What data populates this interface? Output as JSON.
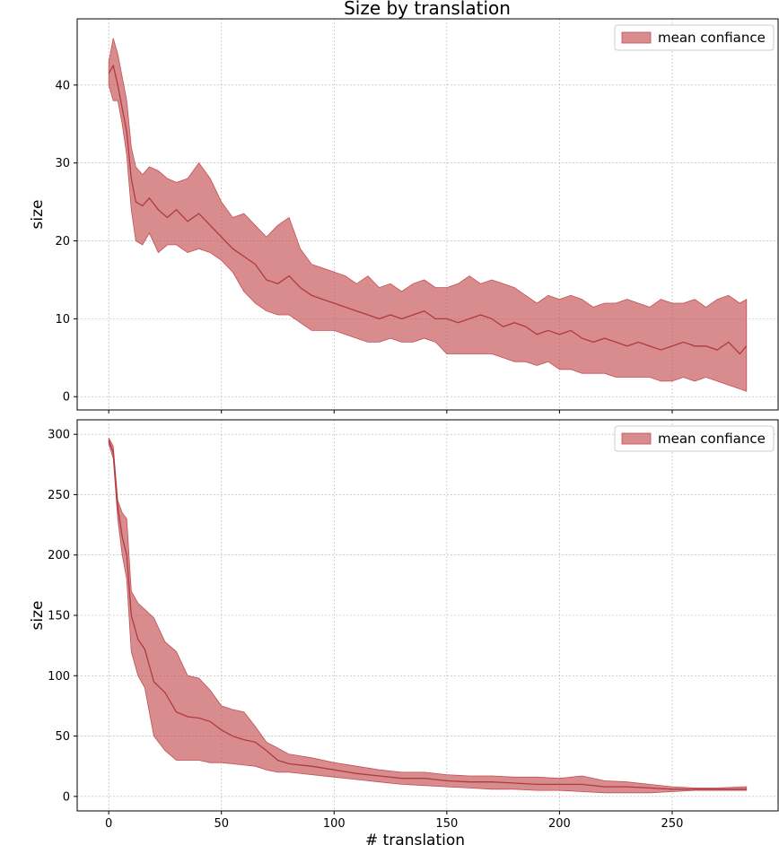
{
  "title": "Size by translation",
  "colors": {
    "band": "#c44e52",
    "line": "#b03a3e",
    "grid": "#b0b0b0"
  },
  "chart_data": [
    {
      "type": "area",
      "ylabel": "size",
      "xlabel": "",
      "xlim": [
        -14,
        297
      ],
      "ylim": [
        -1.7,
        48.5
      ],
      "xticks": [
        0,
        50,
        100,
        150,
        200,
        250
      ],
      "show_xtick_labels": false,
      "yticks": [
        0,
        10,
        20,
        30,
        40
      ],
      "grid": true,
      "legend": {
        "label": "mean confiance",
        "position": "top-right"
      },
      "series": [
        {
          "x": [
            0,
            2,
            4,
            6,
            8,
            10,
            12,
            15,
            18,
            22,
            26,
            30,
            35,
            40,
            45,
            50,
            55,
            60,
            65,
            70,
            75,
            80,
            85,
            90,
            95,
            100,
            105,
            110,
            115,
            120,
            125,
            130,
            135,
            140,
            145,
            150,
            155,
            160,
            165,
            170,
            175,
            180,
            185,
            190,
            195,
            200,
            205,
            210,
            215,
            220,
            225,
            230,
            235,
            240,
            245,
            250,
            255,
            260,
            265,
            270,
            275,
            280,
            283
          ],
          "mean": [
            41.5,
            42.5,
            40.0,
            37.0,
            34.0,
            28.0,
            25.0,
            24.5,
            25.5,
            24.0,
            23.0,
            24.0,
            22.5,
            23.5,
            22.0,
            20.5,
            19.0,
            18.0,
            17.0,
            15.0,
            14.5,
            15.5,
            14.0,
            13.0,
            12.5,
            12.0,
            11.5,
            11.0,
            10.5,
            10.0,
            10.5,
            10.0,
            10.5,
            11.0,
            10.0,
            10.0,
            9.5,
            10.0,
            10.5,
            10.0,
            9.0,
            9.5,
            9.0,
            8.0,
            8.5,
            8.0,
            8.5,
            7.5,
            7.0,
            7.5,
            7.0,
            6.5,
            7.0,
            6.5,
            6.0,
            6.5,
            7.0,
            6.5,
            6.5,
            6.0,
            7.0,
            5.5,
            6.5
          ],
          "lower": [
            40.0,
            38.0,
            38.0,
            35.0,
            31.0,
            24.0,
            20.0,
            19.5,
            21.0,
            18.5,
            19.5,
            19.5,
            18.5,
            19.0,
            18.5,
            17.5,
            16.0,
            13.5,
            12.0,
            11.0,
            10.5,
            10.5,
            9.5,
            8.5,
            8.5,
            8.5,
            8.0,
            7.5,
            7.0,
            7.0,
            7.5,
            7.0,
            7.0,
            7.5,
            7.0,
            5.5,
            5.5,
            5.5,
            5.5,
            5.5,
            5.0,
            4.5,
            4.5,
            4.0,
            4.5,
            3.5,
            3.5,
            3.0,
            3.0,
            3.0,
            2.5,
            2.5,
            2.5,
            2.5,
            2.0,
            2.0,
            2.5,
            2.0,
            2.5,
            2.0,
            1.5,
            1.0,
            0.7
          ],
          "upper": [
            43.0,
            46.0,
            44.0,
            41.0,
            38.0,
            32.0,
            29.5,
            28.5,
            29.5,
            29.0,
            28.0,
            27.5,
            28.0,
            30.0,
            28.0,
            25.0,
            23.0,
            23.5,
            22.0,
            20.5,
            22.0,
            23.0,
            19.0,
            17.0,
            16.5,
            16.0,
            15.5,
            14.5,
            15.5,
            14.0,
            14.5,
            13.5,
            14.5,
            15.0,
            14.0,
            14.0,
            14.5,
            15.5,
            14.5,
            15.0,
            14.5,
            14.0,
            13.0,
            12.0,
            13.0,
            12.5,
            13.0,
            12.5,
            11.5,
            12.0,
            12.0,
            12.5,
            12.0,
            11.5,
            12.5,
            12.0,
            12.0,
            12.5,
            11.5,
            12.5,
            13.0,
            12.0,
            12.5
          ]
        }
      ]
    },
    {
      "type": "area",
      "ylabel": "size",
      "xlabel": "# translation",
      "xlim": [
        -14,
        297
      ],
      "ylim": [
        -12,
        312
      ],
      "xticks": [
        0,
        50,
        100,
        150,
        200,
        250
      ],
      "show_xtick_labels": true,
      "yticks": [
        0,
        50,
        100,
        150,
        200,
        250,
        300
      ],
      "grid": true,
      "legend": {
        "label": "mean confiance",
        "position": "top-right"
      },
      "series": [
        {
          "x": [
            0,
            2,
            4,
            6,
            8,
            10,
            13,
            16,
            20,
            25,
            30,
            35,
            40,
            45,
            50,
            55,
            60,
            65,
            70,
            75,
            80,
            90,
            100,
            110,
            120,
            130,
            140,
            150,
            160,
            170,
            180,
            190,
            200,
            210,
            220,
            230,
            240,
            250,
            260,
            270,
            283
          ],
          "mean": [
            295,
            285,
            240,
            215,
            200,
            150,
            130,
            122,
            95,
            86,
            70,
            66,
            65,
            62,
            55,
            50,
            47,
            45,
            38,
            30,
            27,
            25,
            22,
            19,
            17,
            15,
            15,
            13,
            12,
            12,
            11,
            10,
            10,
            10,
            8,
            8,
            7,
            6,
            6,
            6,
            6
          ],
          "lower": [
            292,
            280,
            230,
            200,
            180,
            120,
            100,
            90,
            50,
            38,
            30,
            30,
            30,
            28,
            28,
            27,
            26,
            25,
            22,
            20,
            20,
            18,
            16,
            14,
            12,
            10,
            9,
            8,
            7,
            6,
            6,
            5,
            5,
            4,
            3,
            3,
            3,
            4,
            5,
            5,
            5
          ],
          "upper": [
            297,
            290,
            245,
            235,
            230,
            170,
            160,
            155,
            148,
            128,
            120,
            100,
            98,
            88,
            75,
            72,
            70,
            58,
            45,
            40,
            35,
            32,
            28,
            25,
            22,
            20,
            20,
            18,
            17,
            17,
            16,
            16,
            15,
            17,
            13,
            12,
            10,
            8,
            7,
            7,
            8
          ]
        }
      ]
    }
  ]
}
